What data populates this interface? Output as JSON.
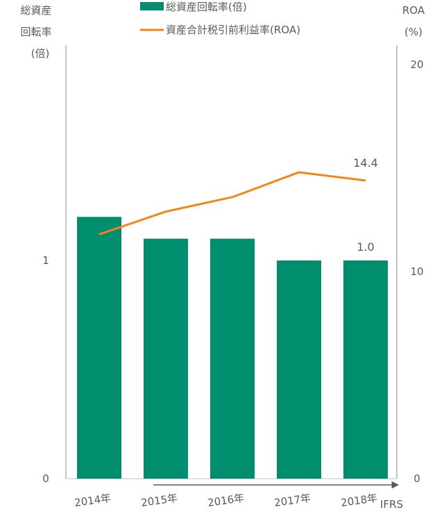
{
  "chart_data": {
    "type": "bar",
    "title": "",
    "categories": [
      "2014年",
      "2015年",
      "2016年",
      "2017年",
      "2018年"
    ],
    "series": [
      {
        "name": "総資産回転率(倍)",
        "kind": "bar",
        "axis": "left",
        "color": "#008e6f",
        "values": [
          1.2,
          1.1,
          1.1,
          1.0,
          1.0
        ]
      },
      {
        "name": "資産合計税引前利益率(ROA)",
        "kind": "line",
        "axis": "right",
        "color": "#f58413",
        "values": [
          11.8,
          12.9,
          13.6,
          14.8,
          14.4
        ]
      }
    ],
    "left_axis": {
      "label_lines": [
        "総資産",
        "回転率",
        "(倍)"
      ],
      "range": [
        0,
        2
      ],
      "ticks": [
        {
          "value": 0,
          "label": "0"
        },
        {
          "value": 1,
          "label": "1"
        }
      ]
    },
    "right_axis": {
      "label_lines": [
        "ROA",
        "(%)"
      ],
      "range": [
        0,
        20
      ],
      "ticks": [
        {
          "value": 0,
          "label": "0"
        },
        {
          "value": 10,
          "label": "10"
        },
        {
          "value": 20,
          "label": "20"
        }
      ]
    },
    "data_labels": [
      {
        "series": 1,
        "index": 4,
        "text": "14.4"
      },
      {
        "series": 0,
        "index": 4,
        "text": "1.0"
      }
    ],
    "ifrs_note": "IFRS",
    "ifrs_from_index": 1,
    "legend": "top-center"
  }
}
